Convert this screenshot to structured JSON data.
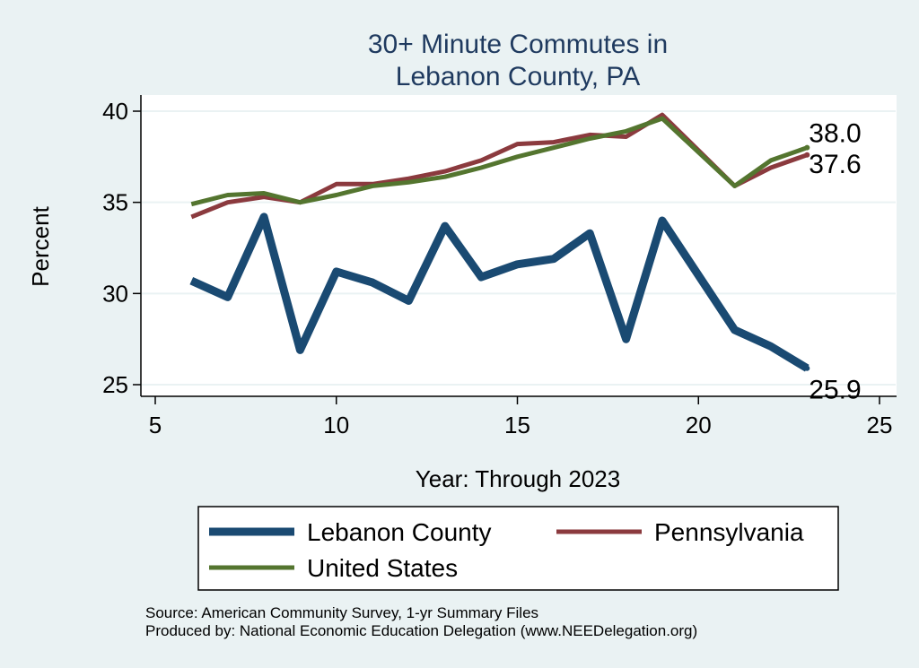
{
  "chart_data": {
    "type": "line",
    "title": [
      "30+ Minute Commutes in",
      "Lebanon County, PA"
    ],
    "xlabel": "Year: Through 2023",
    "ylabel": "Percent",
    "xlim": [
      5,
      25
    ],
    "ylim": [
      25,
      40
    ],
    "xticks": [
      5,
      10,
      15,
      20,
      25
    ],
    "yticks": [
      25,
      30,
      35,
      40
    ],
    "grid": "horizontal",
    "legend_position": "bottom",
    "series": [
      {
        "name": "Lebanon County",
        "color": "#1a4a72",
        "x": [
          6,
          7,
          8,
          9,
          10,
          11,
          12,
          13,
          14,
          15,
          16,
          17,
          18,
          19,
          21,
          22,
          23
        ],
        "values": [
          30.7,
          29.8,
          34.2,
          26.9,
          31.2,
          30.6,
          29.6,
          33.7,
          30.9,
          31.6,
          31.9,
          33.3,
          27.5,
          34.0,
          28.0,
          27.1,
          25.9
        ],
        "end_label": "25.9"
      },
      {
        "name": "Pennsylvania",
        "color": "#8b3a3e",
        "x": [
          6,
          7,
          8,
          9,
          10,
          11,
          12,
          13,
          14,
          15,
          16,
          17,
          18,
          19,
          21,
          22,
          23
        ],
        "values": [
          34.2,
          35.0,
          35.3,
          35.0,
          36.0,
          36.0,
          36.3,
          36.7,
          37.3,
          38.2,
          38.3,
          38.7,
          38.6,
          39.8,
          35.9,
          36.9,
          37.6
        ],
        "end_label": "37.6"
      },
      {
        "name": "United States",
        "color": "#54752f",
        "x": [
          6,
          7,
          8,
          9,
          10,
          11,
          12,
          13,
          14,
          15,
          16,
          17,
          18,
          19,
          21,
          22,
          23
        ],
        "values": [
          34.9,
          35.4,
          35.5,
          35.0,
          35.4,
          35.9,
          36.1,
          36.4,
          36.9,
          37.5,
          38.0,
          38.5,
          38.9,
          39.6,
          35.9,
          37.3,
          38.0
        ],
        "end_label": "38.0"
      }
    ],
    "notes": [
      "Source: American Community Survey, 1-yr Summary Files",
      "Produced by: National Economic Education Delegation (www.NEEDelegation.org)"
    ]
  }
}
